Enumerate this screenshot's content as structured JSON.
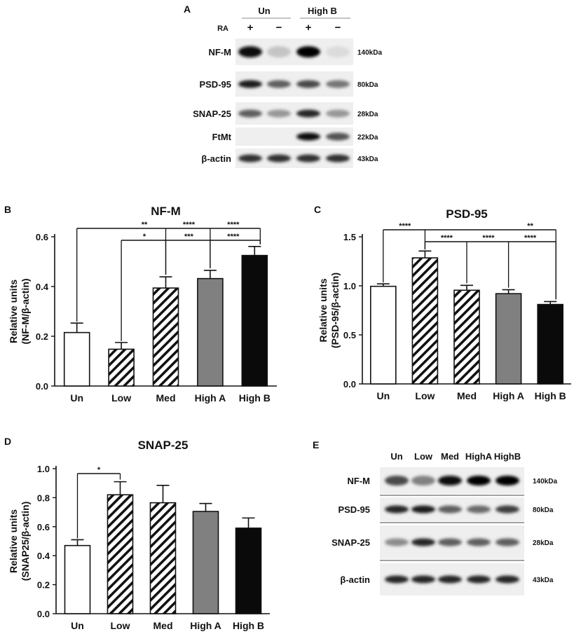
{
  "panels": [
    {
      "id": "A",
      "label": "A"
    },
    {
      "id": "B",
      "label": "B"
    },
    {
      "id": "C",
      "label": "C"
    },
    {
      "id": "D",
      "label": "D"
    },
    {
      "id": "E",
      "label": "E"
    }
  ],
  "blotA": {
    "groups": [
      "Un",
      "High B"
    ],
    "ra_label": "RA",
    "ra_signs": [
      "+",
      "−",
      "+",
      "−"
    ],
    "rows": [
      {
        "name": "NF-M",
        "kda": "140kDa",
        "intensity": [
          0.95,
          0.15,
          1.0,
          0.05
        ]
      },
      {
        "name": "PSD-95",
        "kda": "80kDa",
        "intensity": [
          0.9,
          0.6,
          0.7,
          0.5
        ]
      },
      {
        "name": "SNAP-25",
        "kda": "28kDa",
        "intensity": [
          0.6,
          0.35,
          0.85,
          0.35
        ]
      },
      {
        "name": "FtMt",
        "kda": "22kDa",
        "intensity": [
          0.0,
          0.0,
          0.95,
          0.65
        ]
      },
      {
        "name": "β-actin",
        "kda": "43kDa",
        "intensity": [
          0.8,
          0.8,
          0.8,
          0.8
        ]
      }
    ]
  },
  "blotE": {
    "lanes": [
      "Un",
      "Low",
      "Med",
      "HighA",
      "HighB"
    ],
    "rows": [
      {
        "name": "NF-M",
        "kda": "140kDa",
        "intensity": [
          0.7,
          0.45,
          0.95,
          1.0,
          1.0
        ]
      },
      {
        "name": "PSD-95",
        "kda": "80kDa",
        "intensity": [
          0.85,
          0.9,
          0.6,
          0.55,
          0.75
        ]
      },
      {
        "name": "SNAP-25",
        "kda": "28kDa",
        "intensity": [
          0.4,
          0.85,
          0.6,
          0.6,
          0.6
        ]
      },
      {
        "name": "β-actin",
        "kda": "43kDa",
        "intensity": [
          0.85,
          0.85,
          0.85,
          0.85,
          0.85
        ]
      }
    ]
  },
  "chart_data": [
    {
      "panel": "B",
      "type": "bar",
      "title": "NF-M",
      "ylabel": "Relative units\n(NF-M/β-actin)",
      "categories": [
        "Un",
        "Low",
        "Med",
        "High A",
        "High B"
      ],
      "values": [
        0.215,
        0.148,
        0.394,
        0.432,
        0.525
      ],
      "errors": [
        0.038,
        0.027,
        0.045,
        0.033,
        0.036
      ],
      "fills": [
        "white",
        "hatch",
        "hatch",
        "gray",
        "black"
      ],
      "ylim": [
        0,
        0.6
      ],
      "yticks": [
        "0.0",
        "0.2",
        "0.4",
        "0.6"
      ],
      "ytick_values": [
        0,
        0.2,
        0.4,
        0.6
      ],
      "significance": [
        {
          "from": 0,
          "to": 2,
          "label": "**"
        },
        {
          "from": 0,
          "to": 3,
          "label": "****"
        },
        {
          "from": 0,
          "to": 4,
          "label": "****"
        },
        {
          "from": 1,
          "to": 2,
          "label": "*"
        },
        {
          "from": 1,
          "to": 3,
          "label": "***"
        },
        {
          "from": 1,
          "to": 4,
          "label": "****"
        }
      ]
    },
    {
      "panel": "C",
      "type": "bar",
      "title": "PSD-95",
      "ylabel": "Relative units\n(PSD-95/β-actin)",
      "categories": [
        "Un",
        "Low",
        "Med",
        "High A",
        "High B"
      ],
      "values": [
        0.995,
        1.285,
        0.955,
        0.92,
        0.81
      ],
      "errors": [
        0.025,
        0.07,
        0.05,
        0.04,
        0.03
      ],
      "fills": [
        "white",
        "hatch",
        "hatch",
        "gray",
        "black"
      ],
      "ylim": [
        0,
        1.5
      ],
      "yticks": [
        "0.0",
        "0.5",
        "1.0",
        "1.5"
      ],
      "ytick_values": [
        0,
        0.5,
        1.0,
        1.5
      ],
      "significance": [
        {
          "from": 0,
          "to": 1,
          "label": "****"
        },
        {
          "from": 0,
          "to": 4,
          "label": "**"
        },
        {
          "from": 1,
          "to": 2,
          "label": "****"
        },
        {
          "from": 1,
          "to": 3,
          "label": "****"
        },
        {
          "from": 1,
          "to": 4,
          "label": "****"
        }
      ]
    },
    {
      "panel": "D",
      "type": "bar",
      "title": "SNAP-25",
      "ylabel": "Relative units\n(SNAP25/β-actin)",
      "categories": [
        "Un",
        "Low",
        "Med",
        "High A",
        "High B"
      ],
      "values": [
        0.47,
        0.82,
        0.765,
        0.705,
        0.59
      ],
      "errors": [
        0.04,
        0.09,
        0.12,
        0.055,
        0.07
      ],
      "fills": [
        "white",
        "hatch",
        "hatch",
        "gray",
        "black"
      ],
      "ylim": [
        0,
        1.0
      ],
      "yticks": [
        "0.0",
        "0.2",
        "0.4",
        "0.6",
        "0.8",
        "1.0"
      ],
      "ytick_values": [
        0,
        0.2,
        0.4,
        0.6,
        0.8,
        1.0
      ],
      "significance": [
        {
          "from": 0,
          "to": 1,
          "label": "*"
        }
      ]
    }
  ]
}
